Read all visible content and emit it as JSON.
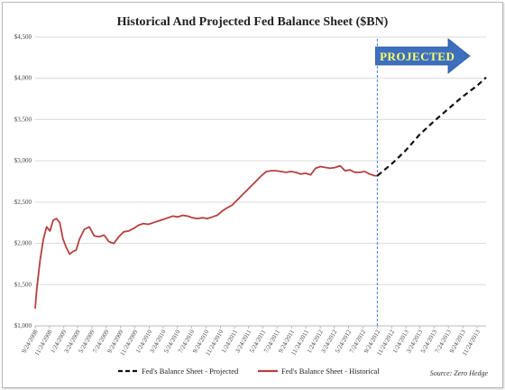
{
  "chart_data": {
    "type": "line",
    "title": "Historical And Projected Fed Balance Sheet ($BN)",
    "xlabel": "",
    "ylabel": "",
    "ylim": [
      1000,
      4500
    ],
    "yticks": [
      "$1,000",
      "$1,500",
      "$2,000",
      "$2,500",
      "$3,000",
      "$3,500",
      "$4,000",
      "$4,500"
    ],
    "ytick_values": [
      1000,
      1500,
      2000,
      2500,
      3000,
      3500,
      4000,
      4500
    ],
    "xticks": [
      "9/24/2008",
      "11/24/2008",
      "1/24/2009",
      "3/24/2009",
      "5/24/2009",
      "7/24/2009",
      "9/24/2009",
      "11/24/2009",
      "1/24/2010",
      "3/24/2010",
      "5/24/2010",
      "7/24/2010",
      "9/24/2010",
      "11/24/2010",
      "1/24/2011",
      "3/24/2011",
      "5/24/2011",
      "7/24/2011",
      "9/24/2011",
      "11/24/2011",
      "1/24/2012",
      "3/24/2012",
      "5/24/2012",
      "7/24/2012",
      "9/24/2012",
      "11/24/2012",
      "1/24/2013",
      "3/24/2013",
      "5/24/2013",
      "7/24/2013",
      "9/24/2013",
      "11/24/2013"
    ],
    "grid": "horizontal",
    "legend_position": "bottom",
    "divider_date": "9/24/2012",
    "annotation": "PROJECTED",
    "source": "Source: Zero Hedge",
    "series": [
      {
        "name": "Fed's Balance Sheet - Historical",
        "color": "#b5403f",
        "style": "solid",
        "x": [
          "9/24/2008",
          "10/1/2008",
          "10/15/2008",
          "10/29/2008",
          "11/12/2008",
          "11/26/2008",
          "12/10/2008",
          "12/24/2008",
          "1/7/2009",
          "1/21/2009",
          "2/4/2009",
          "2/18/2009",
          "3/4/2009",
          "3/18/2009",
          "4/1/2009",
          "4/22/2009",
          "5/13/2009",
          "6/3/2009",
          "6/24/2009",
          "7/15/2009",
          "8/5/2009",
          "8/26/2009",
          "9/16/2009",
          "10/7/2009",
          "10/28/2009",
          "11/18/2009",
          "12/9/2009",
          "12/30/2009",
          "1/20/2010",
          "2/10/2010",
          "3/3/2010",
          "3/24/2010",
          "4/14/2010",
          "5/5/2010",
          "5/26/2010",
          "6/16/2010",
          "7/7/2010",
          "7/28/2010",
          "8/18/2010",
          "9/8/2010",
          "9/29/2010",
          "10/20/2010",
          "11/10/2010",
          "12/1/2010",
          "12/22/2010",
          "1/12/2011",
          "2/2/2011",
          "2/23/2011",
          "3/16/2011",
          "4/6/2011",
          "4/27/2011",
          "5/18/2011",
          "6/8/2011",
          "6/29/2011",
          "7/20/2011",
          "8/10/2011",
          "8/31/2011",
          "9/21/2011",
          "10/12/2011",
          "11/2/2011",
          "11/23/2011",
          "12/14/2011",
          "1/4/2012",
          "1/25/2012",
          "2/15/2012",
          "3/7/2012",
          "3/28/2012",
          "4/18/2012",
          "5/9/2012",
          "5/30/2012",
          "6/20/2012",
          "7/11/2012",
          "8/1/2012",
          "8/22/2012",
          "9/12/2012",
          "9/24/2012"
        ],
        "values": [
          1210,
          1450,
          1800,
          2050,
          2200,
          2150,
          2280,
          2300,
          2250,
          2050,
          1950,
          1870,
          1900,
          1920,
          2050,
          2170,
          2200,
          2090,
          2080,
          2100,
          2020,
          2000,
          2080,
          2140,
          2150,
          2180,
          2220,
          2240,
          2230,
          2250,
          2270,
          2290,
          2310,
          2330,
          2320,
          2340,
          2330,
          2310,
          2300,
          2310,
          2300,
          2320,
          2340,
          2390,
          2430,
          2460,
          2520,
          2580,
          2640,
          2700,
          2760,
          2820,
          2870,
          2880,
          2880,
          2870,
          2860,
          2870,
          2860,
          2840,
          2850,
          2830,
          2910,
          2930,
          2920,
          2910,
          2920,
          2940,
          2880,
          2890,
          2860,
          2860,
          2870,
          2840,
          2820,
          2820
        ]
      },
      {
        "name": "Fed's Balance Sheet - Projected",
        "color": "#111111",
        "style": "dashed",
        "x": [
          "9/24/2012",
          "10/24/2012",
          "12/1/2012",
          "1/24/2013",
          "3/24/2013",
          "5/24/2013",
          "7/24/2013",
          "9/24/2013",
          "11/24/2013",
          "1/1/2014"
        ],
        "values": [
          2820,
          2890,
          2980,
          3130,
          3320,
          3480,
          3630,
          3780,
          3910,
          4010
        ]
      }
    ]
  }
}
